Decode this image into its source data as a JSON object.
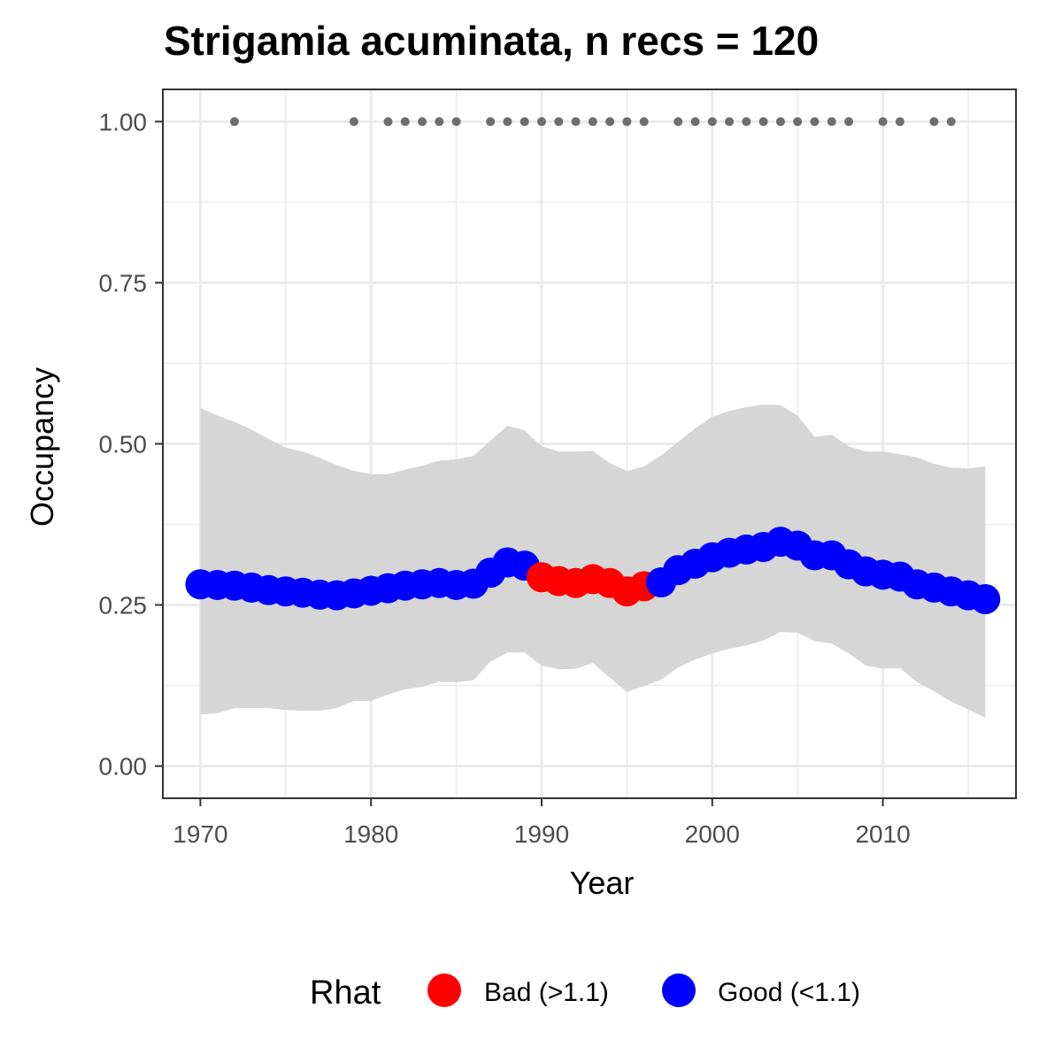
{
  "chart_data": {
    "type": "line",
    "title": "Strigamia acuminata, n recs = 120",
    "xlabel": "Year",
    "ylabel": "Occupancy",
    "xlim": [
      1967.8,
      2017.8
    ],
    "ylim": [
      -0.05,
      1.05
    ],
    "x_ticks": [
      1970,
      1980,
      1990,
      2000,
      2010
    ],
    "x_tick_labels": [
      "1970",
      "1980",
      "1990",
      "2000",
      "2010"
    ],
    "y_ticks": [
      0,
      0.25,
      0.5,
      0.75,
      1.0
    ],
    "y_tick_labels": [
      "0.00",
      "0.25",
      "0.50",
      "0.75",
      "1.00"
    ],
    "grid": true,
    "legend": {
      "title": "Rhat",
      "position": "bottom",
      "entries": [
        {
          "label": "Bad (>1.1)",
          "color": "#FF0000"
        },
        {
          "label": "Good (<1.1)",
          "color": "#0000FF"
        }
      ]
    },
    "colors": {
      "bad": "#FF0000",
      "good": "#0000FF",
      "ribbon": "#d6d6d6",
      "record_points": "#6e6e6e"
    },
    "record_years": [
      1972,
      1979,
      1981,
      1982,
      1983,
      1984,
      1985,
      1987,
      1988,
      1989,
      1990,
      1991,
      1992,
      1993,
      1994,
      1995,
      1996,
      1998,
      1999,
      2000,
      2001,
      2002,
      2003,
      2004,
      2005,
      2006,
      2007,
      2008,
      2010,
      2011,
      2013,
      2014
    ],
    "record_value": 1.0,
    "series": [
      {
        "x": [
          1970,
          1971,
          1972,
          1973,
          1974,
          1975,
          1976,
          1977,
          1978,
          1979,
          1980,
          1981,
          1982,
          1983,
          1984,
          1985,
          1986,
          1987,
          1988,
          1989,
          1990,
          1991,
          1992,
          1993,
          1994,
          1995,
          1996,
          1997,
          1998,
          1999,
          2000,
          2001,
          2002,
          2003,
          2004,
          2005,
          2006,
          2007,
          2008,
          2009,
          2010,
          2011,
          2012,
          2013,
          2014,
          2015,
          2016
        ],
        "mean": [
          0.282,
          0.281,
          0.28,
          0.277,
          0.273,
          0.271,
          0.269,
          0.266,
          0.265,
          0.268,
          0.272,
          0.276,
          0.28,
          0.282,
          0.284,
          0.281,
          0.283,
          0.3,
          0.316,
          0.311,
          0.293,
          0.287,
          0.284,
          0.29,
          0.284,
          0.271,
          0.279,
          0.285,
          0.304,
          0.314,
          0.324,
          0.331,
          0.336,
          0.34,
          0.348,
          0.342,
          0.327,
          0.327,
          0.313,
          0.302,
          0.297,
          0.294,
          0.282,
          0.277,
          0.271,
          0.265,
          0.259
        ],
        "lower": [
          0.08,
          0.082,
          0.09,
          0.09,
          0.09,
          0.087,
          0.086,
          0.086,
          0.09,
          0.101,
          0.101,
          0.111,
          0.119,
          0.123,
          0.131,
          0.13,
          0.133,
          0.162,
          0.176,
          0.176,
          0.156,
          0.15,
          0.151,
          0.16,
          0.137,
          0.115,
          0.124,
          0.134,
          0.153,
          0.165,
          0.175,
          0.182,
          0.187,
          0.195,
          0.208,
          0.207,
          0.194,
          0.19,
          0.175,
          0.156,
          0.151,
          0.152,
          0.13,
          0.116,
          0.1,
          0.088,
          0.075
        ],
        "upper": [
          0.556,
          0.544,
          0.534,
          0.522,
          0.508,
          0.494,
          0.488,
          0.478,
          0.467,
          0.458,
          0.453,
          0.453,
          0.46,
          0.466,
          0.474,
          0.476,
          0.481,
          0.505,
          0.528,
          0.521,
          0.496,
          0.488,
          0.488,
          0.489,
          0.47,
          0.458,
          0.465,
          0.482,
          0.503,
          0.524,
          0.542,
          0.551,
          0.557,
          0.561,
          0.56,
          0.544,
          0.511,
          0.514,
          0.496,
          0.488,
          0.488,
          0.484,
          0.479,
          0.469,
          0.463,
          0.462,
          0.465
        ],
        "rhat_status": [
          "good",
          "good",
          "good",
          "good",
          "good",
          "good",
          "good",
          "good",
          "good",
          "good",
          "good",
          "good",
          "good",
          "good",
          "good",
          "good",
          "good",
          "good",
          "good",
          "good",
          "bad",
          "bad",
          "bad",
          "bad",
          "bad",
          "bad",
          "bad",
          "good",
          "good",
          "good",
          "good",
          "good",
          "good",
          "good",
          "good",
          "good",
          "good",
          "good",
          "good",
          "good",
          "good",
          "good",
          "good",
          "good",
          "good",
          "good",
          "good"
        ]
      }
    ]
  }
}
